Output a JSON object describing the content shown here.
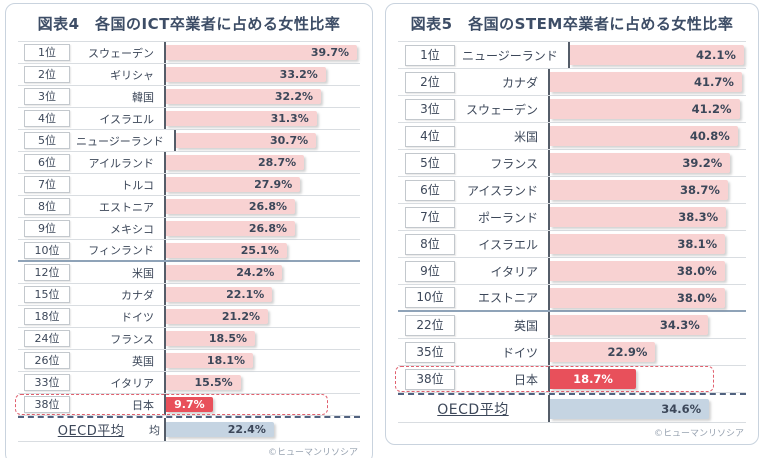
{
  "colors": {
    "bar_pink": "#f8d2d2",
    "bar_red": "#e8505b",
    "bar_blue": "#c5d4e2",
    "axis_line": "#555d69",
    "title_text": "#3d4d66",
    "highlight_dash": "#e0606e",
    "oecd_dash": "#51627f"
  },
  "chart_data": [
    {
      "type": "bar",
      "orientation": "horizontal",
      "title": "図表4　各国のICT卒業者に占める女性比率",
      "unit": "%",
      "xlim": [
        0,
        40.3
      ],
      "grid": false,
      "legend": false,
      "ranks": [
        "1位",
        "2位",
        "3位",
        "4位",
        "5位",
        "6位",
        "7位",
        "8位",
        "9位",
        "10位",
        "12位",
        "15位",
        "18位",
        "24位",
        "26位",
        "33位",
        "38位"
      ],
      "categories": [
        "スウェーデン",
        "ギリシャ",
        "韓国",
        "イスラエル",
        "ニュージーランド",
        "アイルランド",
        "トルコ",
        "エストニア",
        "メキシコ",
        "フィンランド",
        "米国",
        "カナダ",
        "ドイツ",
        "フランス",
        "英国",
        "イタリア",
        "日本"
      ],
      "values": [
        39.7,
        33.2,
        32.2,
        31.3,
        30.7,
        28.7,
        27.9,
        26.8,
        26.8,
        25.1,
        24.2,
        22.1,
        21.2,
        18.5,
        18.1,
        15.5,
        9.7
      ],
      "labels": [
        "39.7%",
        "33.2%",
        "32.2%",
        "31.3%",
        "30.7%",
        "28.7%",
        "27.9%",
        "26.8%",
        "26.8%",
        "25.1%",
        "24.2%",
        "22.1%",
        "21.2%",
        "18.5%",
        "18.1%",
        "15.5%",
        "9.7%"
      ],
      "highlight_index": 16,
      "group_break_after": 9,
      "bar_color": "#f8d2d2",
      "highlight_color": "#e8505b",
      "oecd": {
        "label": "OECD平均",
        "label_artifact": "均",
        "value": 22.4,
        "display": "22.4%",
        "bar_color": "#c5d4e2"
      },
      "credit": "©ヒューマンリソシア"
    },
    {
      "type": "bar",
      "orientation": "horizontal",
      "title": "図表5　各国のSTEM卒業者に占める女性比率",
      "unit": "%",
      "xlim": [
        0,
        42.6
      ],
      "grid": false,
      "legend": false,
      "ranks": [
        "1位",
        "2位",
        "3位",
        "4位",
        "5位",
        "6位",
        "7位",
        "8位",
        "9位",
        "10位",
        "22位",
        "35位",
        "38位"
      ],
      "categories": [
        "ニュージーランド",
        "カナダ",
        "スウェーデン",
        "米国",
        "フランス",
        "アイスランド",
        "ポーランド",
        "イスラエル",
        "イタリア",
        "エストニア",
        "英国",
        "ドイツ",
        "日本"
      ],
      "values": [
        42.1,
        41.7,
        41.2,
        40.8,
        39.2,
        38.7,
        38.3,
        38.1,
        38.0,
        38.0,
        34.3,
        22.9,
        18.7
      ],
      "labels": [
        "42.1%",
        "41.7%",
        "41.2%",
        "40.8%",
        "39.2%",
        "38.7%",
        "38.3%",
        "38.1%",
        "38.0%",
        "38.0%",
        "34.3%",
        "22.9%",
        "18.7%"
      ],
      "highlight_index": 12,
      "group_break_after": 9,
      "bar_color": "#f8d2d2",
      "highlight_color": "#e8505b",
      "oecd": {
        "label": "OECD平均",
        "value": 34.6,
        "display": "34.6%",
        "bar_color": "#c5d4e2"
      },
      "credit": "©ヒューマンリソシア"
    }
  ]
}
